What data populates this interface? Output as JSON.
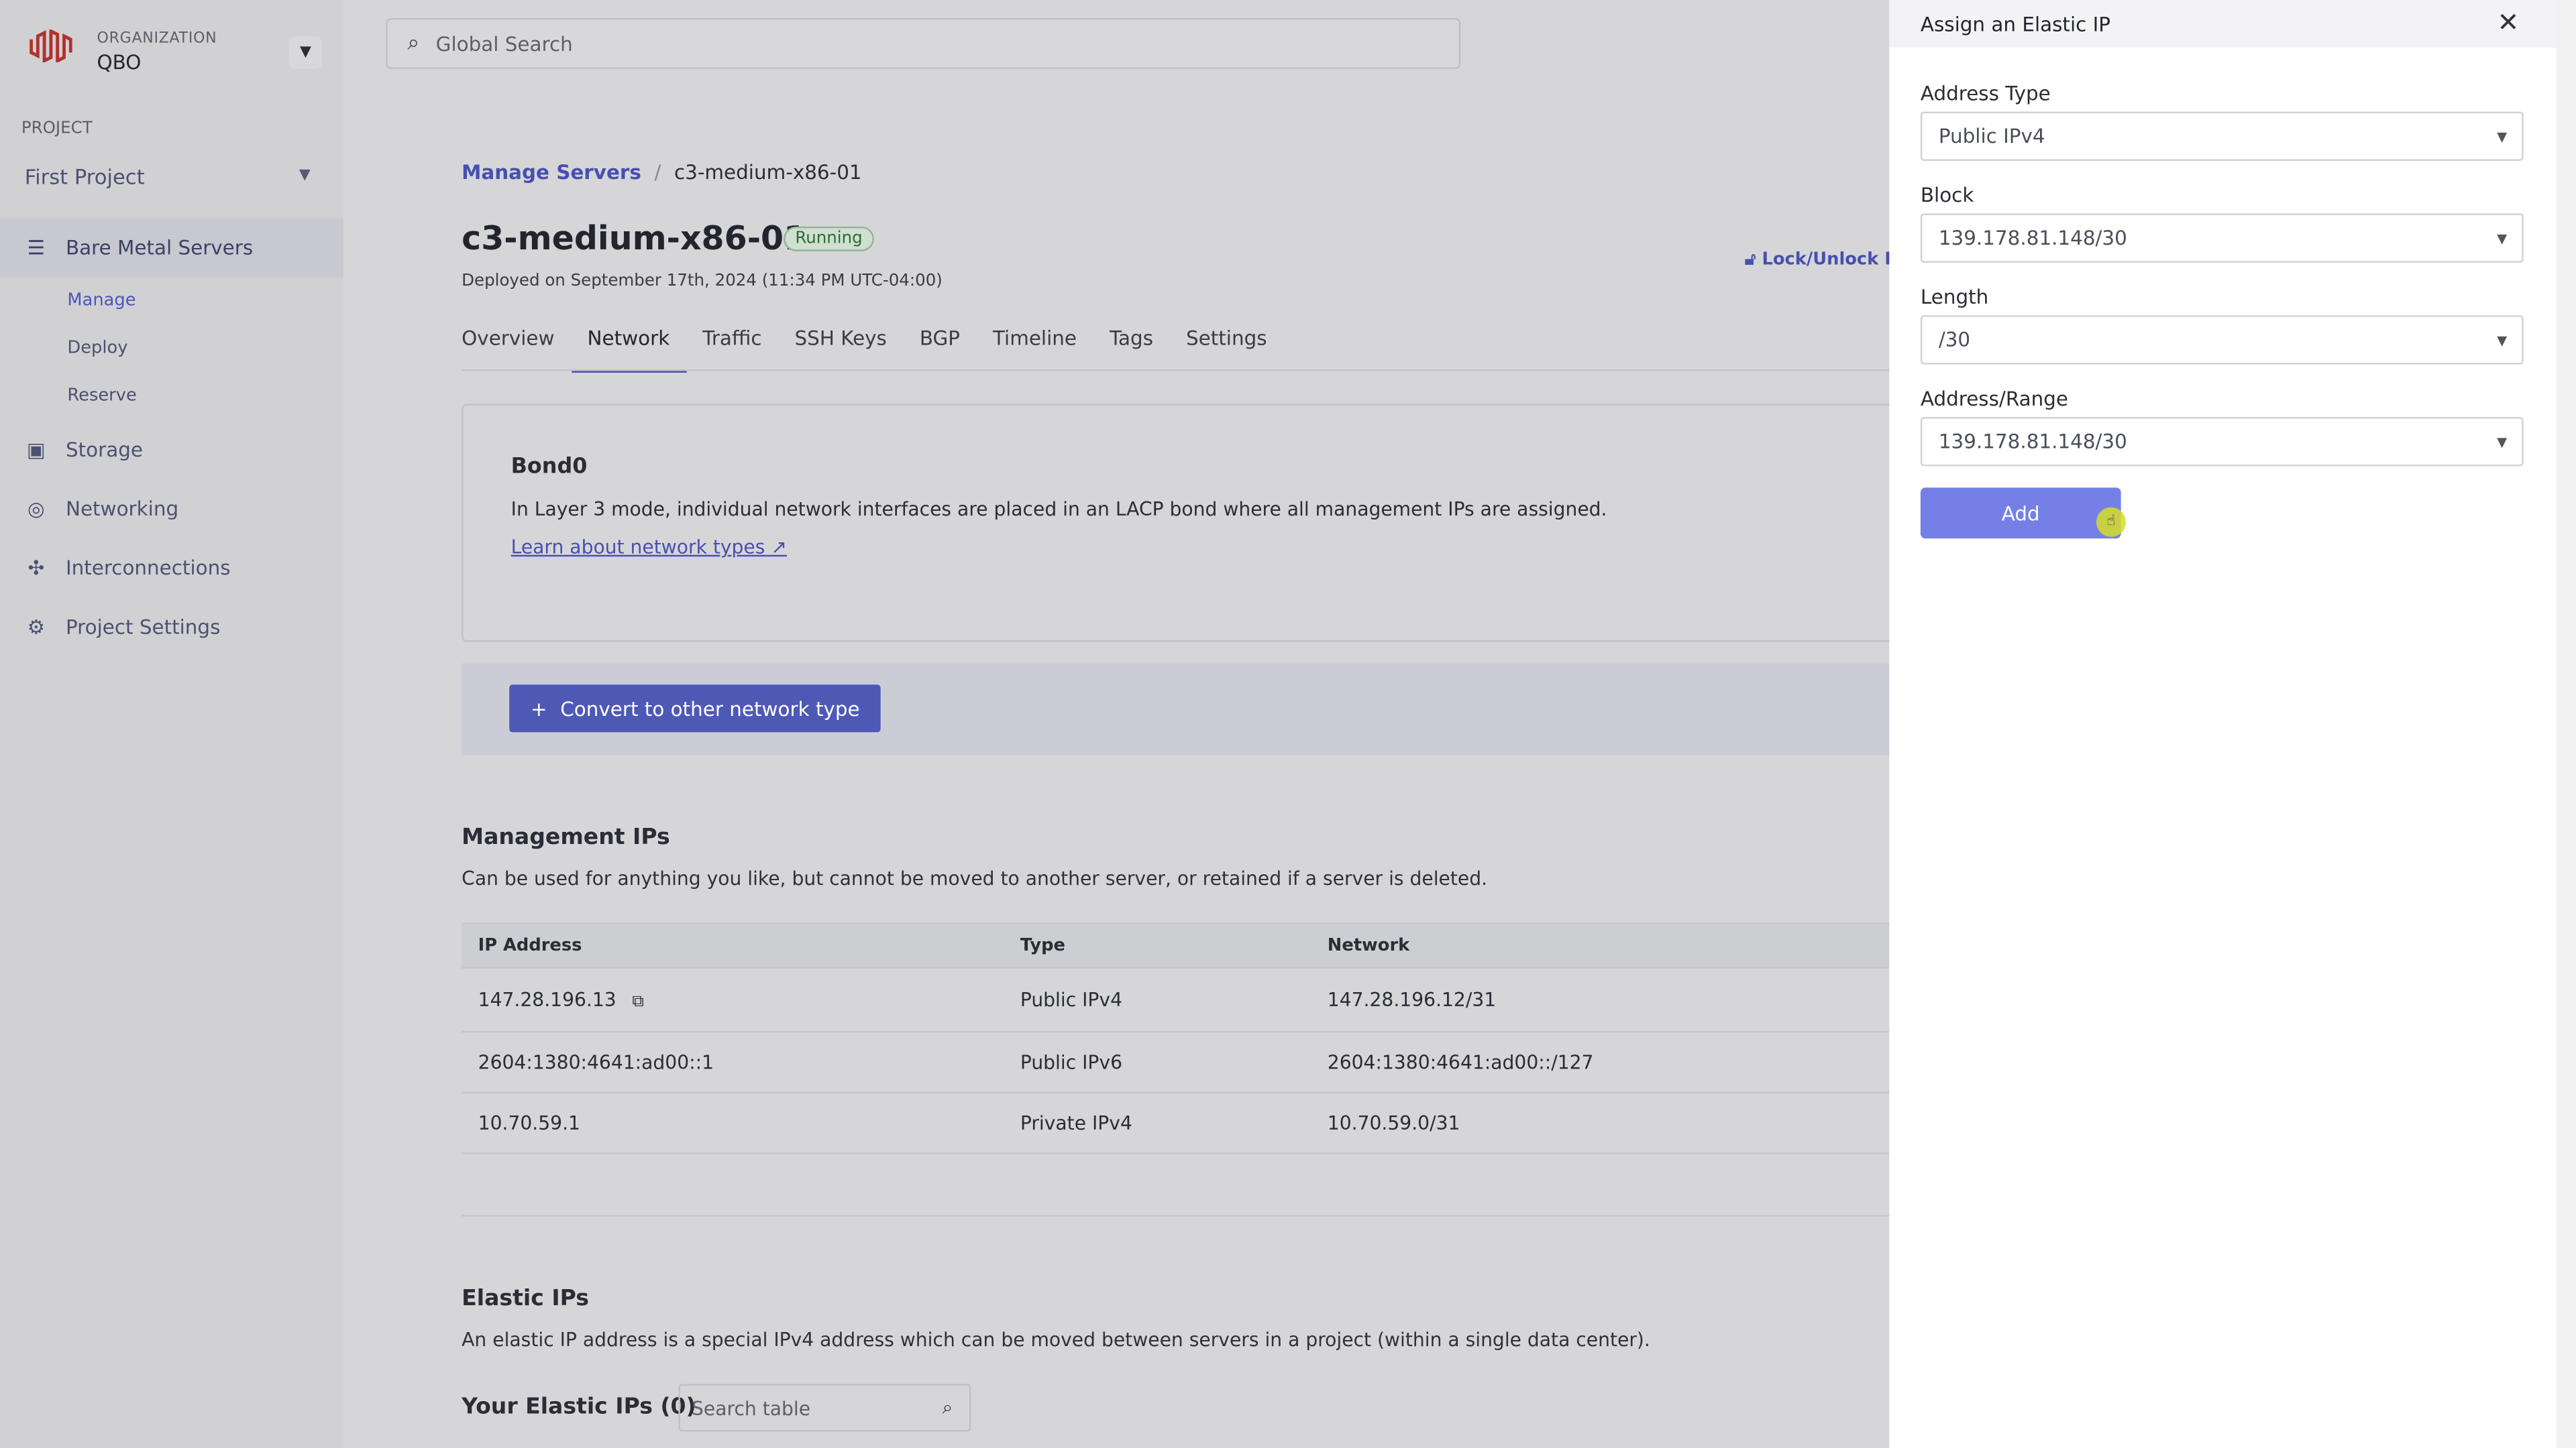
{
  "org": {
    "label": "ORGANIZATION",
    "name": "QBO"
  },
  "project": {
    "label": "PROJECT",
    "name": "First Project"
  },
  "nav": [
    {
      "label": "Bare Metal Servers",
      "icon": "server-icon"
    },
    {
      "label": "Storage",
      "icon": "storage-icon"
    },
    {
      "label": "Networking",
      "icon": "network-icon"
    },
    {
      "label": "Interconnections",
      "icon": "interconnect-icon"
    },
    {
      "label": "Project Settings",
      "icon": "gear-icon"
    }
  ],
  "subnav": [
    "Manage",
    "Deploy",
    "Reserve"
  ],
  "search": {
    "placeholder": "Global Search"
  },
  "breadcrumb": {
    "parent": "Manage Servers",
    "sep": "/",
    "current": "c3-medium-x86-01"
  },
  "server": {
    "name": "c3-medium-x86-01",
    "status": "Running",
    "deployed": "Deployed on September 17th, 2024 (11:34 PM UTC-04:00)",
    "lock": "Lock/Unlock D"
  },
  "tabs": [
    "Overview",
    "Network",
    "Traffic",
    "SSH Keys",
    "BGP",
    "Timeline",
    "Tags",
    "Settings"
  ],
  "bond": {
    "title": "Bond0",
    "desc": "In Layer 3 mode, individual network interfaces are placed in an LACP bond where all management IPs are assigned.",
    "link": "Learn about network types",
    "convert": "Convert to other network type"
  },
  "mgmt": {
    "title": "Management IPs",
    "desc": "Can be used for anything you like, but cannot be moved to another server, or retained if a server is deleted.",
    "headers": [
      "IP Address",
      "Type",
      "Network"
    ],
    "rows": [
      [
        "147.28.196.13",
        "Public IPv4",
        "147.28.196.12/31"
      ],
      [
        "2604:1380:4641:ad00::1",
        "Public IPv6",
        "2604:1380:4641:ad00::/127"
      ],
      [
        "10.70.59.1",
        "Private IPv4",
        "10.70.59.0/31"
      ]
    ]
  },
  "elastic": {
    "title": "Elastic IPs",
    "desc": "An elastic IP address is a special IPv4 address which can be moved between servers in a project (within a single data center).",
    "yours": "Your Elastic IPs (0)",
    "search_placeholder": "Search table"
  },
  "panel": {
    "title": "Assign an Elastic IP",
    "fields": [
      {
        "label": "Address Type",
        "value": "Public IPv4"
      },
      {
        "label": "Block",
        "value": "139.178.81.148/30"
      },
      {
        "label": "Length",
        "value": "/30"
      },
      {
        "label": "Address/Range",
        "value": "139.178.81.148/30"
      }
    ],
    "add": "Add"
  },
  "colors": {
    "accent": "#4650b0",
    "add_button": "#7480e6",
    "brand_logo": "#b0322e"
  }
}
